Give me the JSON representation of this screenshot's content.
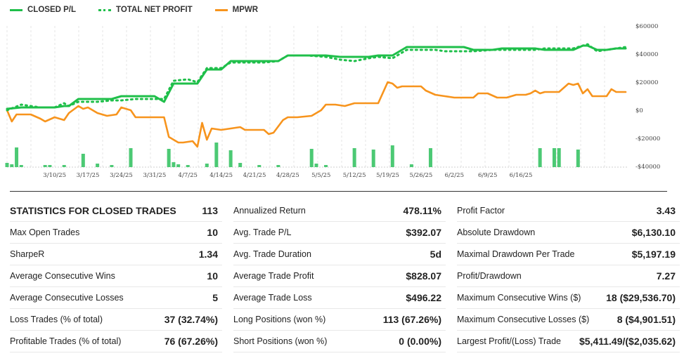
{
  "legend": {
    "closed": "CLOSED P/L",
    "total": "TOTAL NET PROFIT",
    "mpwr": "MPWR"
  },
  "chart_data": {
    "type": "line",
    "x_tick_labels": [
      "3/10/25",
      "3/17/25",
      "3/24/25",
      "3/31/25",
      "4/7/25",
      "4/14/25",
      "4/21/25",
      "4/28/25",
      "5/5/25",
      "5/12/25",
      "5/19/25",
      "5/26/25",
      "6/2/25",
      "6/9/25",
      "6/16/25"
    ],
    "y_tick_labels": [
      "$60000",
      "$40000",
      "$20000",
      "$0",
      "-$20000",
      "-$40000"
    ],
    "y_ticks": [
      60000,
      40000,
      20000,
      0,
      -20000,
      -40000
    ],
    "ylim": [
      -40000,
      60000
    ],
    "grid": "vertical-dashed",
    "legend_position": "top-left",
    "colors": {
      "closed": "#1fbf4a",
      "total": "#1fbf4a",
      "mpwr": "#f7941d",
      "volume": "#4cc974"
    },
    "series": [
      {
        "name": "CLOSED P/L",
        "style": "solid",
        "points": [
          [
            0,
            1000
          ],
          [
            3,
            2000
          ],
          [
            5,
            2000
          ],
          [
            7,
            2000
          ],
          [
            10,
            2000
          ],
          [
            12,
            3000
          ],
          [
            13,
            3000
          ],
          [
            15,
            8000
          ],
          [
            19,
            8000
          ],
          [
            22,
            8000
          ],
          [
            24,
            10000
          ],
          [
            27,
            10000
          ],
          [
            31,
            10000
          ],
          [
            33,
            6000
          ],
          [
            35,
            19000
          ],
          [
            38,
            19000
          ],
          [
            40,
            19000
          ],
          [
            42,
            29000
          ],
          [
            45,
            29000
          ],
          [
            47,
            35000
          ],
          [
            50,
            35000
          ],
          [
            54,
            35000
          ],
          [
            57,
            35000
          ],
          [
            59,
            39000
          ],
          [
            63,
            39000
          ],
          [
            67,
            39000
          ],
          [
            70,
            38000
          ],
          [
            73,
            38000
          ],
          [
            76,
            38000
          ],
          [
            78,
            39000
          ],
          [
            81,
            39000
          ],
          [
            84,
            45000
          ],
          [
            86,
            45000
          ],
          [
            90,
            45000
          ],
          [
            92,
            45000
          ],
          [
            96,
            45000
          ],
          [
            98,
            43000
          ],
          [
            102,
            43000
          ],
          [
            104,
            44000
          ],
          [
            106,
            44000
          ],
          [
            109,
            44000
          ],
          [
            111,
            44000
          ],
          [
            113,
            43000
          ],
          [
            115,
            43000
          ],
          [
            117,
            43000
          ],
          [
            119,
            43000
          ],
          [
            121,
            46000
          ],
          [
            122,
            46000
          ],
          [
            124,
            43000
          ],
          [
            126,
            43000
          ],
          [
            128,
            44000
          ],
          [
            130,
            44000
          ]
        ]
      },
      {
        "name": "TOTAL NET PROFIT",
        "style": "dotted",
        "points": [
          [
            0,
            0
          ],
          [
            3,
            4000
          ],
          [
            5,
            3000
          ],
          [
            7,
            2000
          ],
          [
            10,
            2000
          ],
          [
            12,
            5000
          ],
          [
            13,
            3000
          ],
          [
            15,
            6000
          ],
          [
            19,
            6000
          ],
          [
            22,
            7000
          ],
          [
            24,
            7000
          ],
          [
            27,
            8000
          ],
          [
            31,
            8000
          ],
          [
            33,
            8000
          ],
          [
            35,
            21000
          ],
          [
            38,
            22000
          ],
          [
            40,
            20000
          ],
          [
            42,
            30000
          ],
          [
            45,
            30000
          ],
          [
            47,
            34000
          ],
          [
            50,
            34000
          ],
          [
            54,
            34000
          ],
          [
            57,
            35000
          ],
          [
            59,
            39000
          ],
          [
            63,
            39000
          ],
          [
            67,
            38000
          ],
          [
            70,
            36000
          ],
          [
            73,
            35000
          ],
          [
            76,
            37000
          ],
          [
            78,
            38000
          ],
          [
            81,
            37000
          ],
          [
            84,
            43000
          ],
          [
            86,
            43000
          ],
          [
            90,
            43000
          ],
          [
            92,
            42000
          ],
          [
            96,
            42000
          ],
          [
            98,
            42000
          ],
          [
            102,
            43000
          ],
          [
            104,
            43000
          ],
          [
            106,
            43000
          ],
          [
            109,
            43000
          ],
          [
            111,
            43000
          ],
          [
            113,
            44000
          ],
          [
            115,
            44000
          ],
          [
            117,
            44000
          ],
          [
            119,
            44000
          ],
          [
            121,
            46000
          ],
          [
            122,
            47000
          ],
          [
            124,
            42000
          ],
          [
            126,
            43000
          ],
          [
            128,
            44000
          ],
          [
            130,
            45000
          ]
        ]
      },
      {
        "name": "MPWR",
        "style": "solid",
        "points": [
          [
            0,
            0
          ],
          [
            1,
            -8000
          ],
          [
            2,
            -3000
          ],
          [
            3,
            -3000
          ],
          [
            5,
            -3000
          ],
          [
            7,
            -6000
          ],
          [
            8,
            -8000
          ],
          [
            10,
            -5000
          ],
          [
            12,
            -7000
          ],
          [
            13,
            -2000
          ],
          [
            15,
            3000
          ],
          [
            16,
            1000
          ],
          [
            17,
            2000
          ],
          [
            19,
            -2000
          ],
          [
            21,
            -4000
          ],
          [
            23,
            -3000
          ],
          [
            24,
            2000
          ],
          [
            26,
            0
          ],
          [
            27,
            -5000
          ],
          [
            30,
            -5000
          ],
          [
            33,
            -5000
          ],
          [
            34,
            -19000
          ],
          [
            36,
            -23000
          ],
          [
            37,
            -23000
          ],
          [
            39,
            -22000
          ],
          [
            40,
            -26000
          ],
          [
            41,
            -9000
          ],
          [
            42,
            -21000
          ],
          [
            43,
            -13000
          ],
          [
            45,
            -14000
          ],
          [
            47,
            -13000
          ],
          [
            49,
            -12000
          ],
          [
            50,
            -14000
          ],
          [
            52,
            -14000
          ],
          [
            54,
            -14000
          ],
          [
            55,
            -17000
          ],
          [
            56,
            -16000
          ],
          [
            58,
            -7000
          ],
          [
            59,
            -5000
          ],
          [
            61,
            -5000
          ],
          [
            64,
            -4000
          ],
          [
            66,
            0
          ],
          [
            67,
            4000
          ],
          [
            69,
            4000
          ],
          [
            71,
            3000
          ],
          [
            73,
            5000
          ],
          [
            75,
            5000
          ],
          [
            77,
            5000
          ],
          [
            78,
            5000
          ],
          [
            80,
            20000
          ],
          [
            81,
            19000
          ],
          [
            82,
            16000
          ],
          [
            83,
            17000
          ],
          [
            85,
            17000
          ],
          [
            87,
            17000
          ],
          [
            88,
            14000
          ],
          [
            90,
            11000
          ],
          [
            92,
            10000
          ],
          [
            94,
            9000
          ],
          [
            96,
            9000
          ],
          [
            98,
            9000
          ],
          [
            99,
            12000
          ],
          [
            101,
            12000
          ],
          [
            103,
            9000
          ],
          [
            105,
            9000
          ],
          [
            107,
            11000
          ],
          [
            109,
            11000
          ],
          [
            110,
            12000
          ],
          [
            111,
            14000
          ],
          [
            112,
            12000
          ],
          [
            113,
            13000
          ],
          [
            115,
            13000
          ],
          [
            116,
            13000
          ],
          [
            117,
            16000
          ],
          [
            118,
            19000
          ],
          [
            119,
            18000
          ],
          [
            120,
            19000
          ],
          [
            121,
            12000
          ],
          [
            122,
            15000
          ],
          [
            123,
            10000
          ],
          [
            124,
            10000
          ],
          [
            125,
            10000
          ],
          [
            126,
            10000
          ],
          [
            127,
            15000
          ],
          [
            128,
            13000
          ],
          [
            130,
            13000
          ]
        ]
      }
    ],
    "volume_bars": [
      [
        0,
        6
      ],
      [
        1,
        4
      ],
      [
        2,
        28
      ],
      [
        3,
        3
      ],
      [
        8,
        3
      ],
      [
        9,
        3
      ],
      [
        12,
        3
      ],
      [
        16,
        19
      ],
      [
        19,
        5
      ],
      [
        22,
        3
      ],
      [
        26,
        27
      ],
      [
        34,
        26
      ],
      [
        35,
        7
      ],
      [
        36,
        4
      ],
      [
        38,
        3
      ],
      [
        42,
        5
      ],
      [
        44,
        35
      ],
      [
        47,
        24
      ],
      [
        49,
        6
      ],
      [
        53,
        3
      ],
      [
        57,
        3
      ],
      [
        64,
        26
      ],
      [
        65,
        5
      ],
      [
        67,
        3
      ],
      [
        73,
        27
      ],
      [
        77,
        25
      ],
      [
        81,
        31
      ],
      [
        85,
        4
      ],
      [
        89,
        27
      ],
      [
        112,
        27
      ],
      [
        115,
        27
      ],
      [
        116,
        27
      ],
      [
        120,
        25
      ]
    ]
  },
  "stats": {
    "rows": [
      [
        [
          "STATISTICS FOR CLOSED TRADES",
          "113"
        ],
        [
          "Annualized Return",
          "478.11%"
        ],
        [
          "Profit Factor",
          "3.43"
        ]
      ],
      [
        [
          "Max Open Trades",
          "10"
        ],
        [
          "Avg. Trade P/L",
          "$392.07"
        ],
        [
          "Absolute Drawdown",
          "$6,130.10"
        ]
      ],
      [
        [
          "SharpeR",
          "1.34"
        ],
        [
          "Avg. Trade Duration",
          "5d"
        ],
        [
          "Maximal Drawdown Per Trade",
          "$5,197.19"
        ]
      ],
      [
        [
          "Average Consecutive Wins",
          "10"
        ],
        [
          "Average Trade Profit",
          "$828.07"
        ],
        [
          "Profit/Drawdown",
          "7.27"
        ]
      ],
      [
        [
          "Average Consecutive Losses",
          "5"
        ],
        [
          "Average Trade Loss",
          "$496.22"
        ],
        [
          "Maximum Consecutive Wins ($)",
          "18 ($29,536.70)"
        ]
      ],
      [
        [
          "Loss Trades (% of total)",
          "37 (32.74%)"
        ],
        [
          "Long Positions (won %)",
          "113 (67.26%)"
        ],
        [
          "Maximum Consecutive Losses ($)",
          "8 ($4,901.51)"
        ]
      ],
      [
        [
          "Profitable Trades (% of total)",
          "76 (67.26%)"
        ],
        [
          "Short Positions (won %)",
          "0 (0.00%)"
        ],
        [
          "Largest Profit/(Loss) Trade",
          "$5,411.49/($2,035.62)"
        ]
      ]
    ]
  }
}
